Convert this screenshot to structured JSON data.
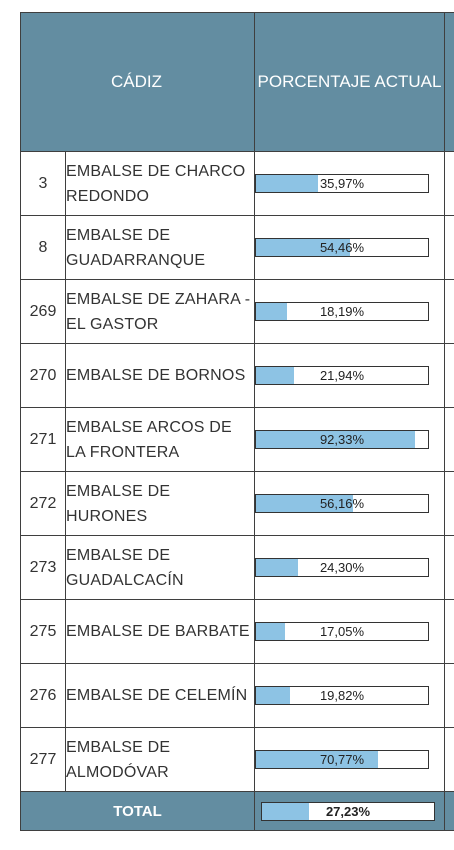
{
  "table": {
    "header": {
      "province": "CÁDIZ",
      "percentage": "PORCENTAJE ACTUAL"
    },
    "rows": [
      {
        "id": "3",
        "name": "EMBALSE DE CHARCO REDONDO",
        "pct_label": "35,97%",
        "pct": 35.97
      },
      {
        "id": "8",
        "name": "EMBALSE DE GUADARRANQUE",
        "pct_label": "54,46%",
        "pct": 54.46
      },
      {
        "id": "269",
        "name": "EMBALSE DE ZAHARA - EL GASTOR",
        "pct_label": "18,19%",
        "pct": 18.19
      },
      {
        "id": "270",
        "name": "EMBALSE DE BORNOS",
        "pct_label": "21,94%",
        "pct": 21.94
      },
      {
        "id": "271",
        "name": "EMBALSE ARCOS DE LA FRONTERA",
        "pct_label": "92,33%",
        "pct": 92.33
      },
      {
        "id": "272",
        "name": "EMBALSE DE HURONES",
        "pct_label": "56,16%",
        "pct": 56.16
      },
      {
        "id": "273",
        "name": "EMBALSE DE GUADALCACÍN",
        "pct_label": "24,30%",
        "pct": 24.3
      },
      {
        "id": "275",
        "name": "EMBALSE DE BARBATE",
        "pct_label": "17,05%",
        "pct": 17.05
      },
      {
        "id": "276",
        "name": "EMBALSE DE CELEMÍN",
        "pct_label": "19,82%",
        "pct": 19.82
      },
      {
        "id": "277",
        "name": "EMBALSE DE ALMODÓVAR",
        "pct_label": "70,77%",
        "pct": 70.77
      }
    ],
    "total": {
      "label": "TOTAL",
      "pct_label": "27,23%",
      "pct": 27.23
    }
  },
  "colors": {
    "header_bg": "#638da1",
    "bar_fill": "#8dc3e4",
    "border": "#3f3f3f"
  }
}
